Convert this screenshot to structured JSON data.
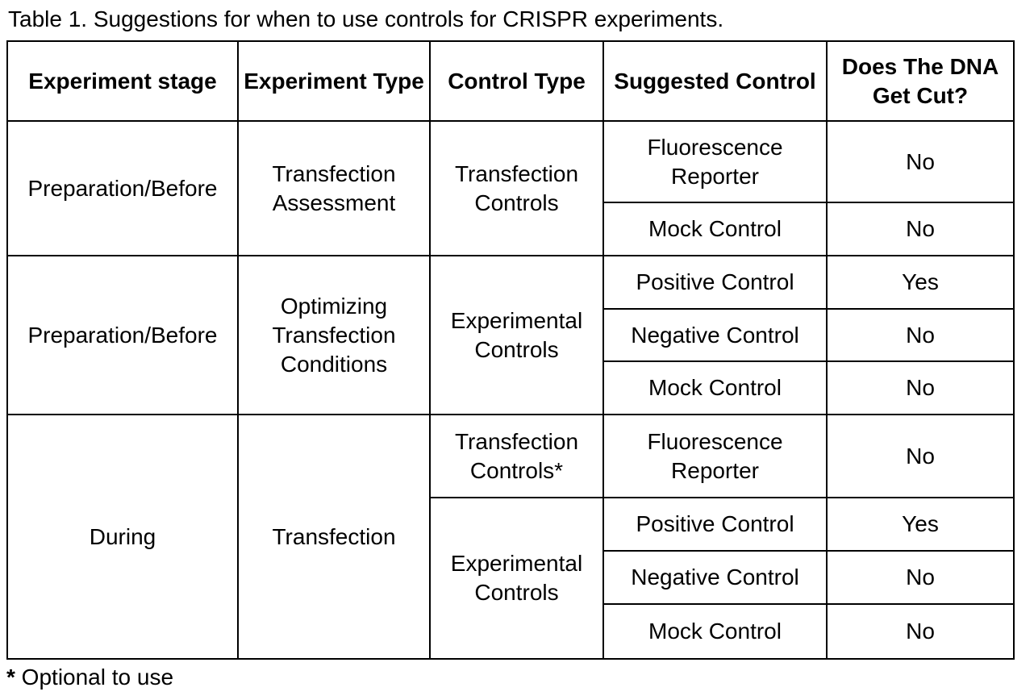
{
  "title": "Table 1. Suggestions for when to use controls for CRISPR experiments.",
  "table": {
    "columns": [
      "Experiment stage",
      "Experiment Type",
      "Control Type",
      "Suggested Control",
      "Does The DNA Get Cut?"
    ],
    "sections": [
      {
        "stage": "Preparation/Before",
        "experiment_type": "Transfection Assessment",
        "control_groups": [
          {
            "control_type": "Transfection Controls",
            "rows": [
              {
                "suggested_control": "Fluorescence Reporter",
                "dna_cut": "No"
              },
              {
                "suggested_control": "Mock Control",
                "dna_cut": "No"
              }
            ]
          }
        ]
      },
      {
        "stage": "Preparation/Before",
        "experiment_type": "Optimizing Transfection Conditions",
        "control_groups": [
          {
            "control_type": "Experimental Controls",
            "rows": [
              {
                "suggested_control": "Positive Control",
                "dna_cut": "Yes"
              },
              {
                "suggested_control": "Negative Control",
                "dna_cut": "No"
              },
              {
                "suggested_control": "Mock Control",
                "dna_cut": "No"
              }
            ]
          }
        ]
      },
      {
        "stage": "During",
        "experiment_type": "Transfection",
        "control_groups": [
          {
            "control_type": "Transfection Controls*",
            "rows": [
              {
                "suggested_control": "Fluorescence Reporter",
                "dna_cut": "No"
              }
            ]
          },
          {
            "control_type": "Experimental Controls",
            "rows": [
              {
                "suggested_control": "Positive Control",
                "dna_cut": "Yes"
              },
              {
                "suggested_control": "Negative Control",
                "dna_cut": "No"
              },
              {
                "suggested_control": "Mock Control",
                "dna_cut": "No"
              }
            ]
          }
        ]
      }
    ]
  },
  "footnote": {
    "marker": "*",
    "text": " Optional to use"
  }
}
